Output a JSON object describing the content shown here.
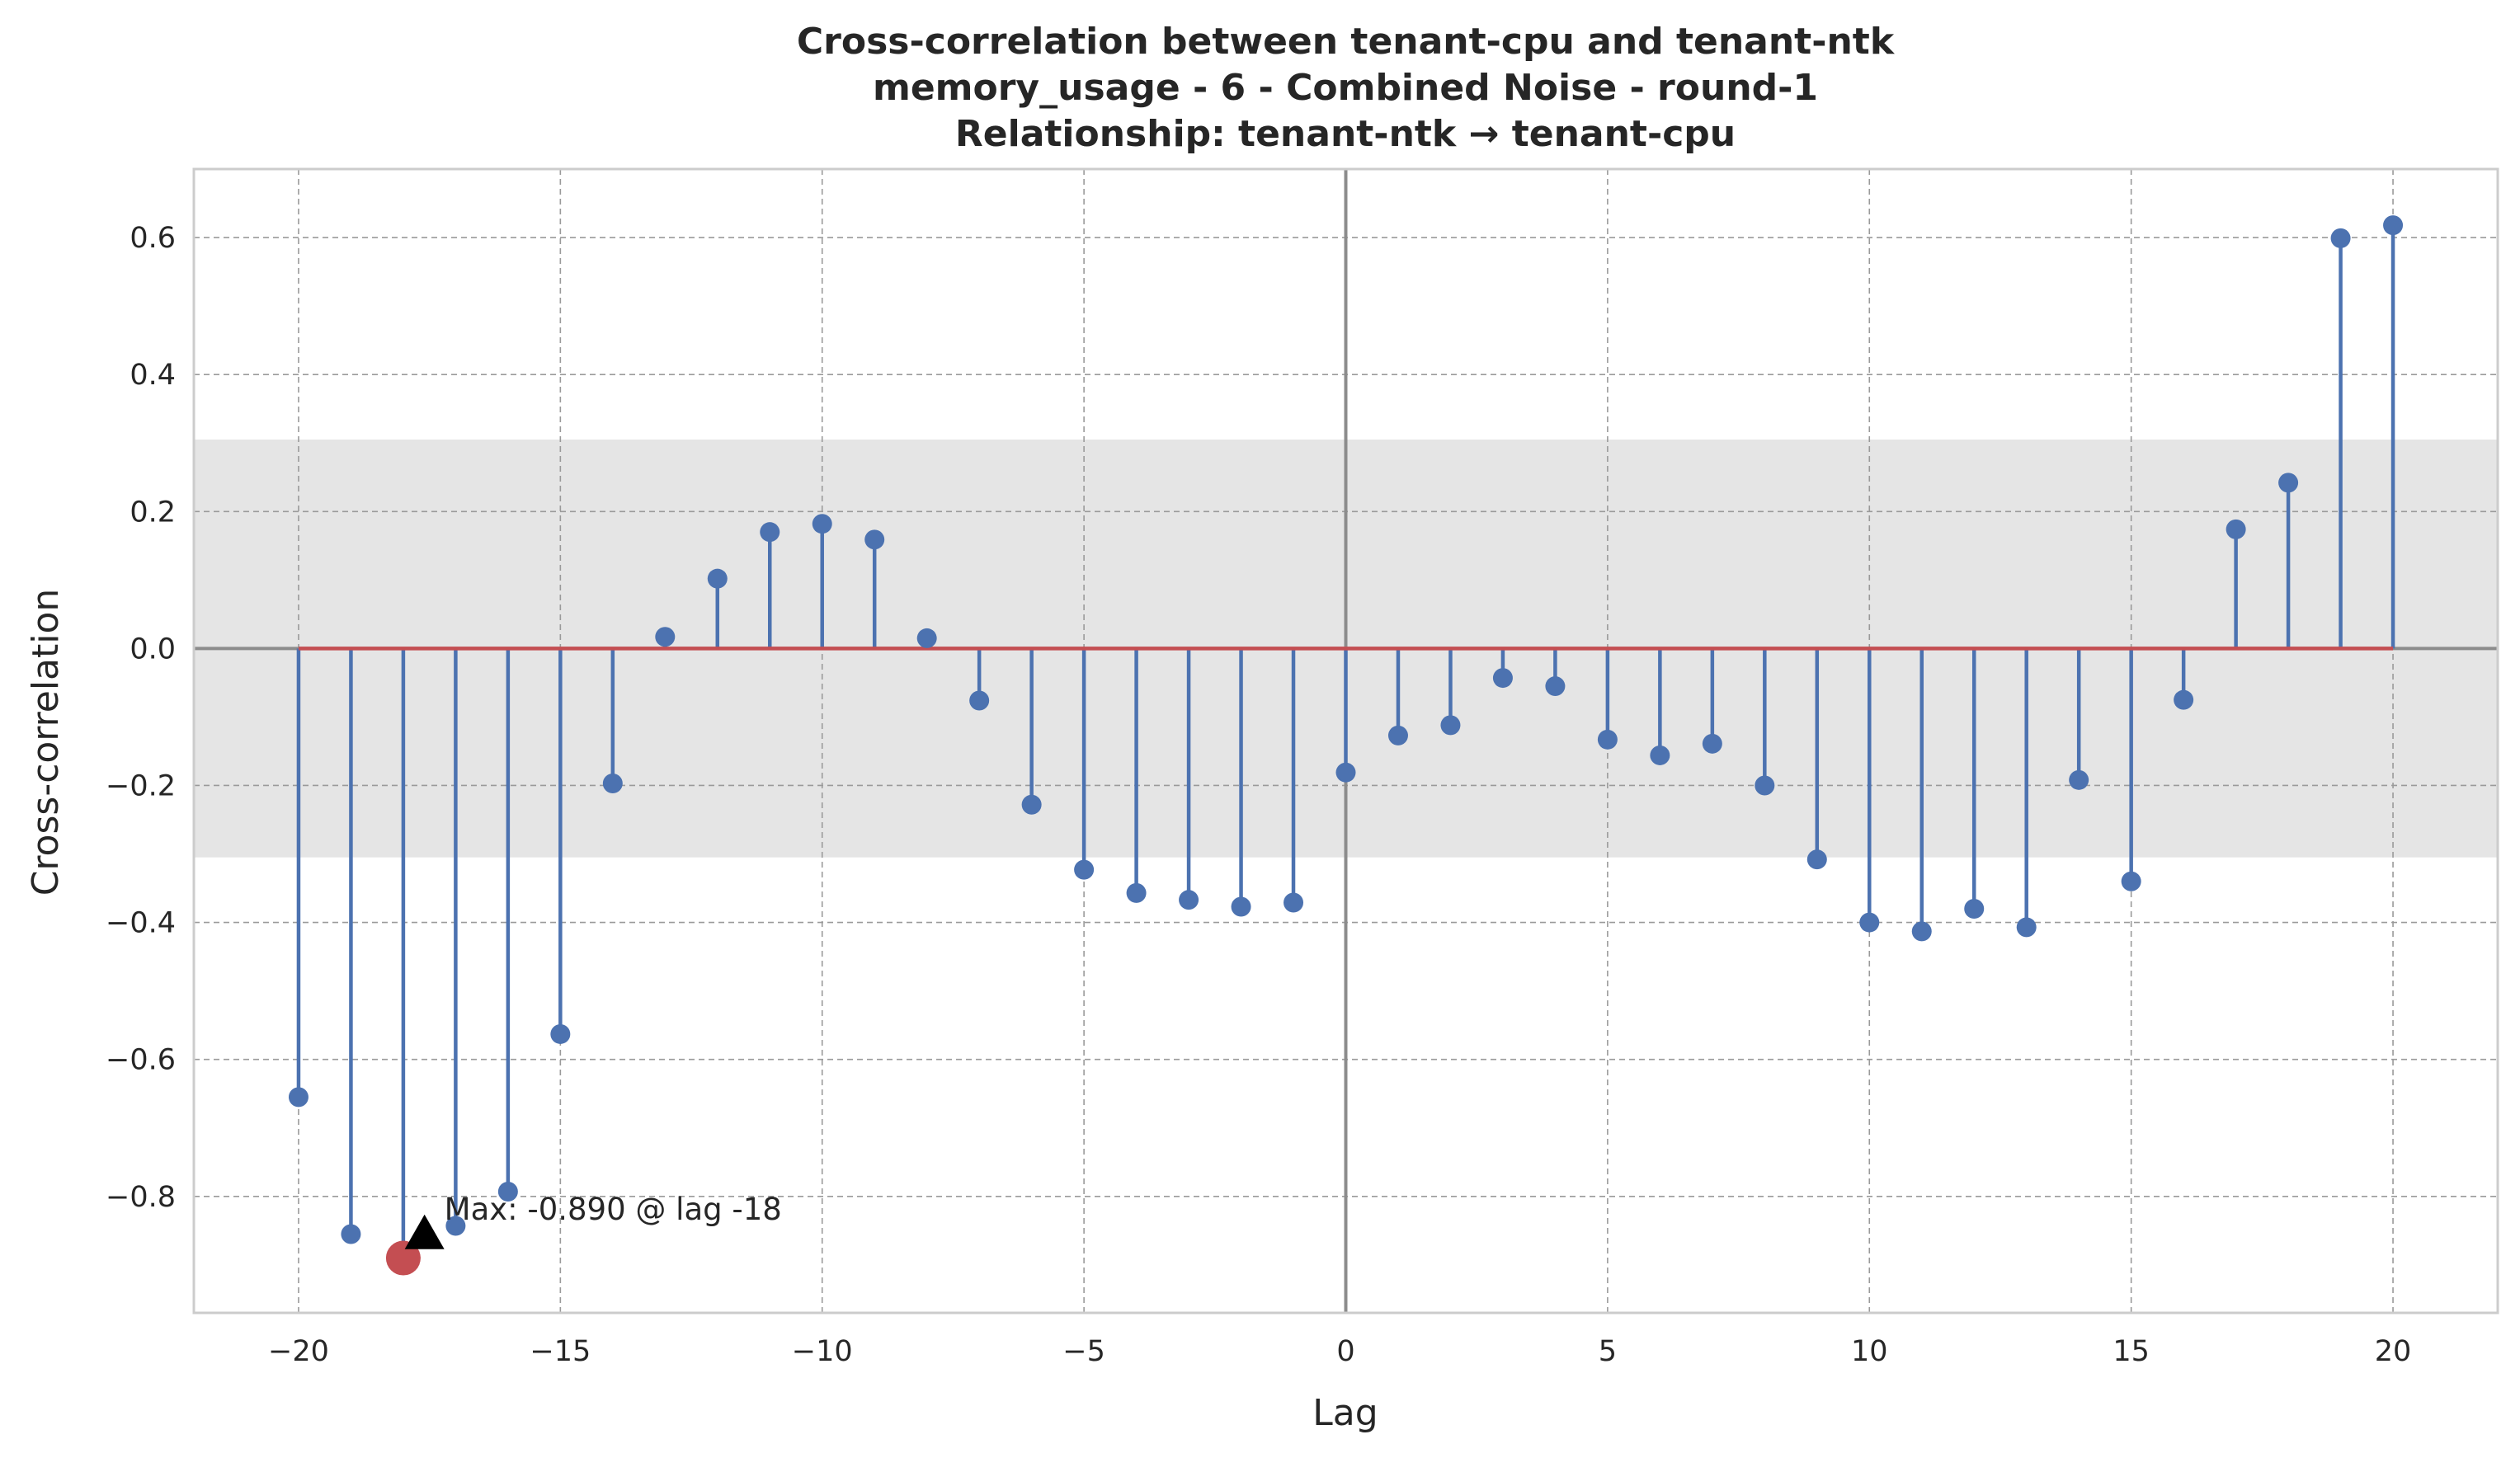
{
  "chart_data": {
    "type": "stem",
    "title": [
      "Cross-correlation between tenant-cpu and tenant-ntk",
      "memory_usage - 6 - Combined Noise - round-1",
      "Relationship: tenant-ntk → tenant-cpu"
    ],
    "xlabel": "Lag",
    "ylabel": "Cross-correlation",
    "xlim": [
      -22,
      22
    ],
    "ylim": [
      -0.97,
      0.7
    ],
    "xticks": [
      -20,
      -15,
      -10,
      -5,
      0,
      5,
      10,
      15,
      20
    ],
    "xtick_labels": [
      "−20",
      "−15",
      "−10",
      "−5",
      "0",
      "5",
      "10",
      "15",
      "20"
    ],
    "yticks": [
      -0.8,
      -0.6,
      -0.4,
      -0.2,
      0.0,
      0.2,
      0.4,
      0.6
    ],
    "ytick_labels": [
      "−0.8",
      "−0.6",
      "−0.4",
      "−0.2",
      "0.0",
      "0.2",
      "0.4",
      "0.6"
    ],
    "grid": true,
    "confidence_band": [
      -0.305,
      0.305
    ],
    "x": [
      -20,
      -19,
      -18,
      -17,
      -16,
      -15,
      -14,
      -13,
      -12,
      -11,
      -10,
      -9,
      -8,
      -7,
      -6,
      -5,
      -4,
      -3,
      -2,
      -1,
      0,
      1,
      2,
      3,
      4,
      5,
      6,
      7,
      8,
      9,
      10,
      11,
      12,
      13,
      14,
      15,
      16,
      17,
      18,
      19,
      20
    ],
    "values": [
      -0.655,
      -0.855,
      -0.89,
      -0.843,
      -0.793,
      -0.563,
      -0.197,
      0.017,
      0.102,
      0.17,
      0.182,
      0.159,
      0.015,
      -0.076,
      -0.228,
      -0.323,
      -0.357,
      -0.367,
      -0.377,
      -0.371,
      -0.181,
      -0.127,
      -0.112,
      -0.043,
      -0.055,
      -0.133,
      -0.156,
      -0.139,
      -0.2,
      -0.308,
      -0.4,
      -0.413,
      -0.38,
      -0.407,
      -0.192,
      -0.34,
      -0.075,
      0.174,
      0.242,
      0.599,
      0.618
    ],
    "max_point": {
      "x": -18,
      "y": -0.89
    },
    "annotation": {
      "text": "Max: -0.890 @ lag -18",
      "x": -17.5,
      "y": -0.865
    },
    "colors": {
      "stem": "#4c72b0",
      "baseline": "#c44e52",
      "highlight": "#c44e52",
      "band": "#e5e5e5",
      "zero_line": "#8c8c8c",
      "frame": "#cccccc"
    }
  }
}
